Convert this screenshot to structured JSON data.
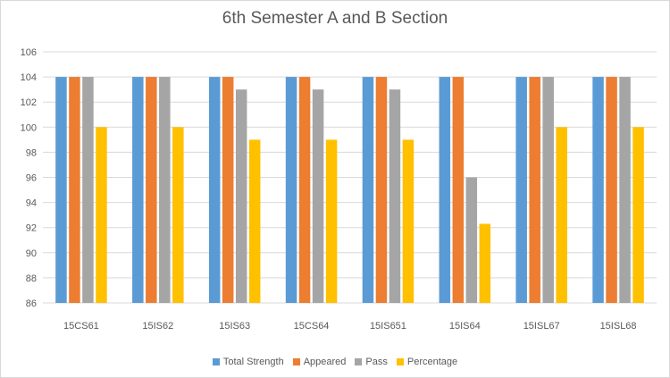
{
  "chart_data": {
    "type": "bar",
    "title": "6th Semester A and B Section",
    "categories": [
      "15CS61",
      "15IS62",
      "15IS63",
      "15CS64",
      "15IS651",
      "15IS64",
      "15ISL67",
      "15ISL68"
    ],
    "series": [
      {
        "name": "Total Strength",
        "color": "#5b9bd5",
        "values": [
          104,
          104,
          104,
          104,
          104,
          104,
          104,
          104
        ]
      },
      {
        "name": "Appeared",
        "color": "#ed7d31",
        "values": [
          104,
          104,
          104,
          104,
          104,
          104,
          104,
          104
        ]
      },
      {
        "name": "Pass",
        "color": "#a5a5a5",
        "values": [
          104,
          104,
          103,
          103,
          103,
          96,
          104,
          104
        ]
      },
      {
        "name": "Percentage",
        "color": "#ffc000",
        "values": [
          100,
          100,
          99,
          99,
          99,
          92.3,
          100,
          100
        ]
      }
    ],
    "ylim": [
      86,
      106
    ],
    "yticks": [
      86,
      88,
      90,
      92,
      94,
      96,
      98,
      100,
      102,
      104,
      106
    ],
    "grid": true,
    "legend": "bottom"
  }
}
